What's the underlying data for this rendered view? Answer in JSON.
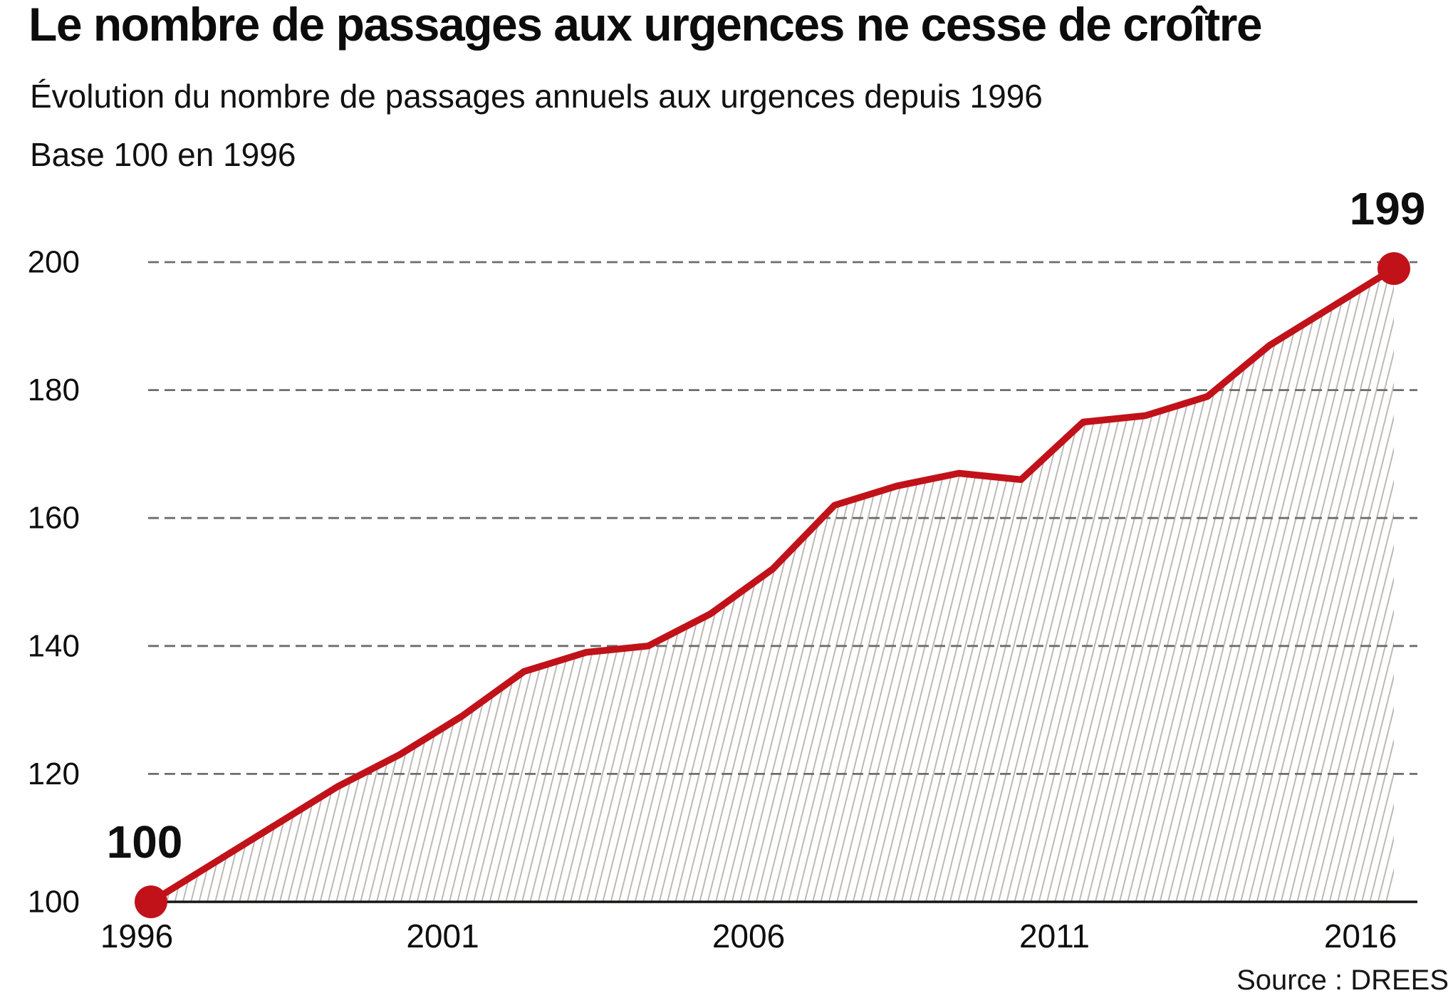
{
  "header": {
    "title": "Le nombre de passages aux urgences ne cesse de croître",
    "subtitle": "Évolution du nombre de passages annuels aux urgences depuis 1996",
    "base_note": "Base 100 en 1996"
  },
  "source": "Source : DREES",
  "chart_data": {
    "type": "area",
    "x": [
      1996,
      1997,
      1998,
      1999,
      2000,
      2001,
      2002,
      2003,
      2004,
      2005,
      2006,
      2007,
      2008,
      2009,
      2010,
      2011,
      2012,
      2013,
      2014,
      2015,
      2016
    ],
    "values": [
      100,
      106,
      112,
      118,
      123,
      129,
      136,
      139,
      140,
      145,
      152,
      162,
      165,
      167,
      166,
      175,
      176,
      179,
      187,
      193,
      199
    ],
    "ylim": [
      100,
      200
    ],
    "yticks": [
      100,
      120,
      140,
      160,
      180,
      200
    ],
    "xticks": [
      1996,
      2001,
      2006,
      2011,
      2016
    ],
    "grid": "horizontal-dashed",
    "legend": "none",
    "annotations": [
      {
        "year": 1996,
        "label": "100"
      },
      {
        "year": 2016,
        "label": "199"
      }
    ],
    "colors": {
      "line": "#c1121a",
      "point": "#c1121a",
      "grid": "#6d6d6d",
      "axis": "#151515",
      "hatch": "#b7b2ac",
      "text": "#0e0e0e"
    }
  }
}
